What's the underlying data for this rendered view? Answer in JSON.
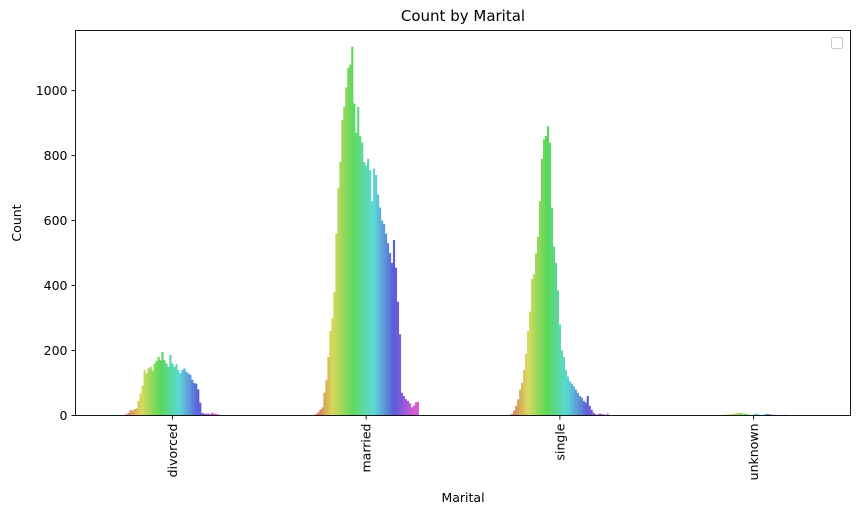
{
  "chart_data": {
    "type": "bar",
    "title": "Count by Marital",
    "xlabel": "Marital",
    "ylabel": "Count",
    "categories": [
      "divorced",
      "married",
      "single",
      "unknown"
    ],
    "yticks": [
      0,
      200,
      400,
      600,
      800,
      1000
    ],
    "ylim": [
      0,
      1185
    ],
    "grid": false,
    "legend": {
      "placement": "top-right",
      "entries": []
    },
    "hue_levels": 78,
    "series_by_category": [
      {
        "category": "divorced",
        "values": [
          2,
          4,
          8,
          17,
          15,
          20,
          22,
          45,
          68,
          92,
          140,
          130,
          145,
          150,
          138,
          160,
          168,
          180,
          170,
          195,
          170,
          160,
          150,
          186,
          160,
          150,
          158,
          140,
          130,
          140,
          145,
          135,
          130,
          125,
          110,
          100,
          98,
          80,
          40,
          8,
          6,
          5,
          6,
          4,
          8,
          6,
          5,
          3,
          2
        ]
      },
      {
        "category": "married",
        "values": [
          2,
          5,
          10,
          18,
          25,
          70,
          110,
          180,
          260,
          300,
          380,
          560,
          700,
          780,
          910,
          950,
          1010,
          1070,
          1080,
          1135,
          960,
          870,
          950,
          860,
          840,
          780,
          770,
          790,
          755,
          660,
          760,
          740,
          680,
          640,
          600,
          590,
          560,
          530,
          500,
          470,
          540,
          455,
          350,
          250,
          70,
          60,
          50,
          45,
          38,
          25,
          30,
          40,
          42
        ]
      },
      {
        "category": "single",
        "values": [
          2,
          5,
          15,
          30,
          50,
          80,
          100,
          140,
          190,
          260,
          320,
          420,
          435,
          500,
          550,
          660,
          790,
          850,
          860,
          890,
          840,
          640,
          520,
          470,
          385,
          280,
          200,
          180,
          140,
          120,
          105,
          98,
          90,
          80,
          70,
          60,
          55,
          45,
          40,
          60,
          30,
          18,
          8,
          4,
          3,
          6,
          5,
          4,
          2,
          6,
          1
        ]
      },
      {
        "category": "unknown",
        "values": [
          1,
          2,
          1,
          3,
          2,
          4,
          5,
          6,
          8,
          7,
          8,
          5,
          6,
          4,
          3,
          2,
          1,
          4,
          6,
          3,
          2,
          1,
          3,
          5,
          4,
          3,
          2,
          2,
          1,
          1,
          2,
          1,
          2,
          2
        ]
      }
    ]
  }
}
